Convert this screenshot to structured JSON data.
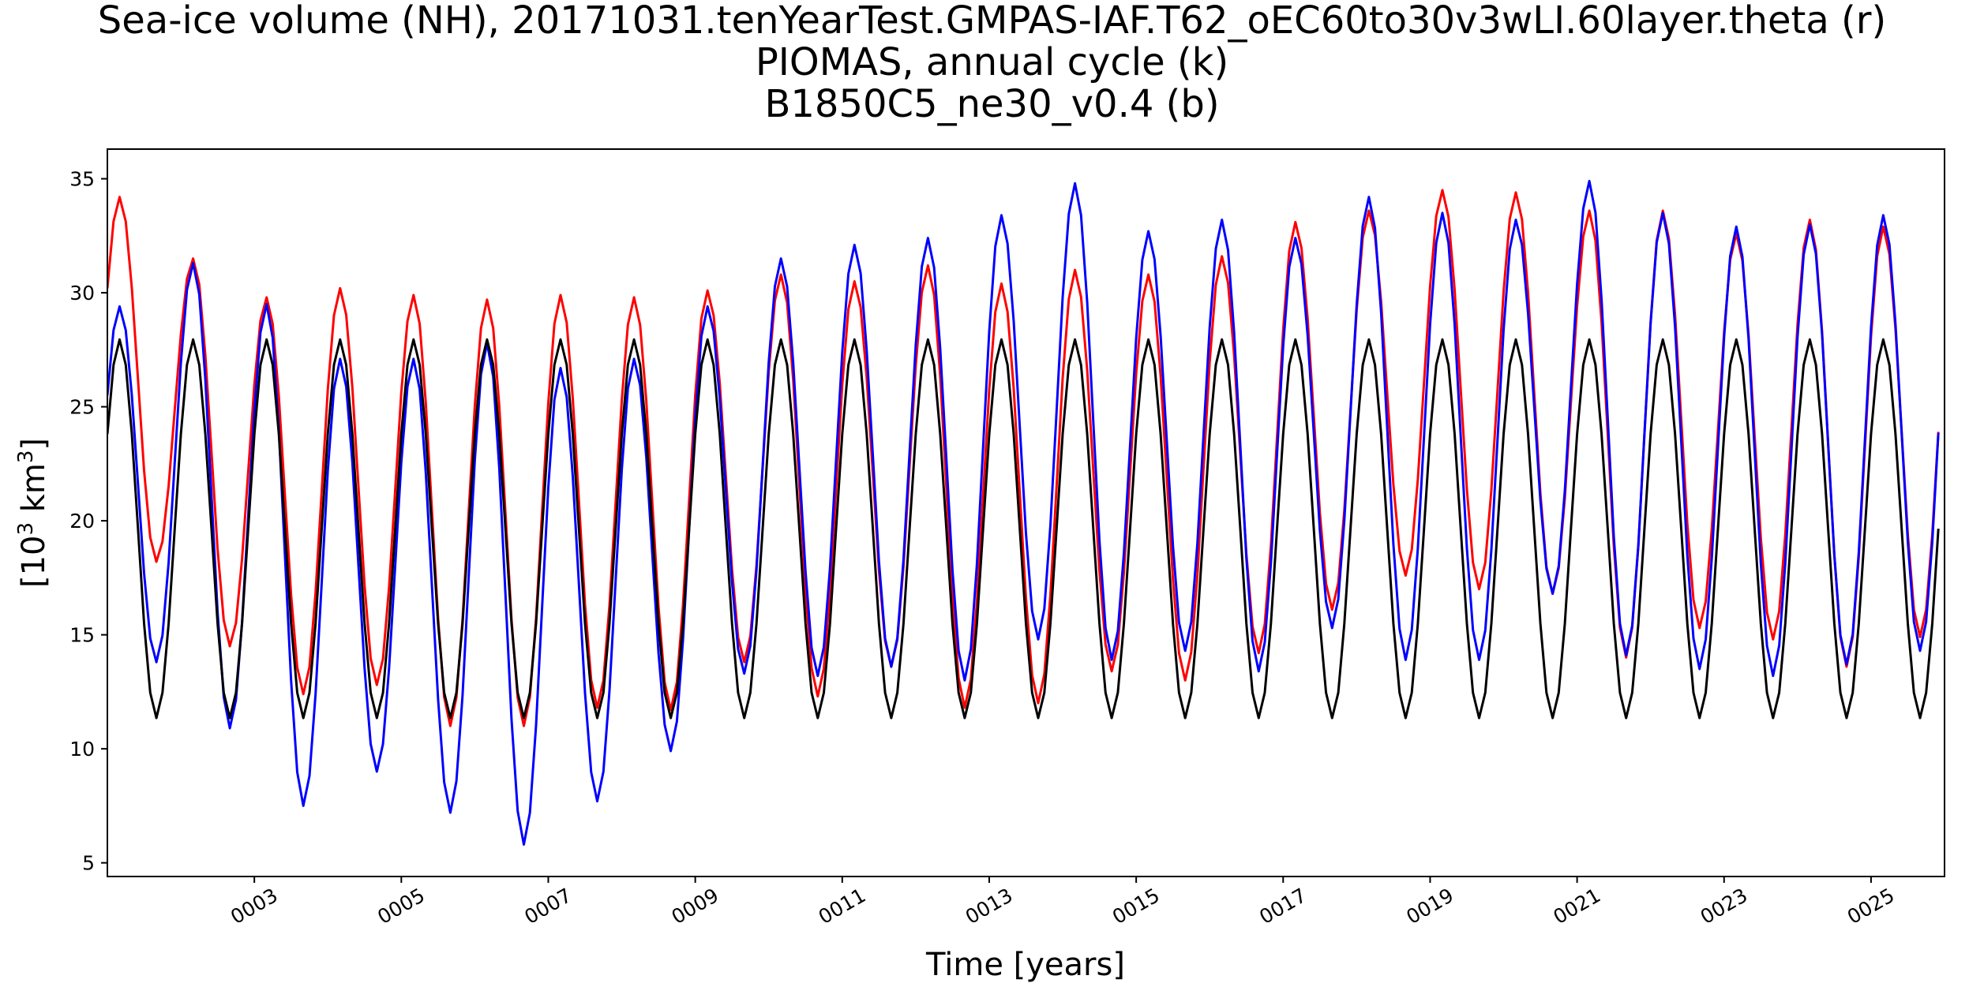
{
  "chart_data": {
    "type": "line",
    "title_lines": [
      "Sea-ice volume (NH), 20171031.tenYearTest.GMPAS-IAF.T62_oEC60to30v3wLI.60layer.theta (r)",
      "PIOMAS, annual cycle (k)",
      "B1850C5_ne30_v0.4 (b)"
    ],
    "xlabel": "Time [years]",
    "ylabel": "[10³ km³]",
    "xlim": [
      1.0,
      26.0
    ],
    "ylim": [
      4.4,
      36.3
    ],
    "x_ticks": [
      3,
      5,
      7,
      9,
      11,
      13,
      15,
      17,
      19,
      21,
      23,
      25
    ],
    "x_tick_labels": [
      "0003",
      "0005",
      "0007",
      "0009",
      "0011",
      "0013",
      "0015",
      "0017",
      "0019",
      "0021",
      "0023",
      "0025"
    ],
    "y_ticks": [
      5,
      10,
      15,
      20,
      25,
      30,
      35
    ],
    "y_tick_labels": [
      "5",
      "10",
      "15",
      "20",
      "25",
      "30",
      "35"
    ],
    "grid": false,
    "series": [
      {
        "color": "#ff0000",
        "annual_max": [
          34.2,
          31.5,
          29.8,
          30.2,
          29.9,
          29.7,
          29.9,
          29.8,
          30.1,
          30.8,
          30.5,
          31.2,
          30.4,
          31.0,
          30.8,
          31.6,
          33.1,
          33.6,
          34.5,
          34.4,
          33.6,
          33.6,
          32.6,
          33.2,
          32.9
        ],
        "annual_min": [
          18.2,
          14.5,
          12.4,
          12.8,
          11.0,
          11.0,
          11.8,
          11.7,
          13.8,
          12.3,
          13.6,
          11.8,
          12.0,
          13.4,
          13.0,
          14.2,
          16.1,
          17.6,
          17.0,
          16.8,
          14.0,
          15.3,
          14.8,
          13.6,
          14.9
        ]
      },
      {
        "color": "#0000ff",
        "annual_max": [
          29.4,
          31.3,
          29.5,
          27.1,
          27.1,
          27.8,
          26.7,
          27.1,
          29.4,
          31.5,
          32.1,
          32.4,
          33.4,
          34.8,
          32.7,
          33.2,
          32.4,
          34.2,
          33.5,
          33.2,
          34.9,
          33.5,
          32.9,
          33.0,
          33.4
        ],
        "annual_min": [
          13.8,
          10.9,
          7.5,
          9.0,
          7.2,
          5.8,
          7.7,
          9.9,
          13.3,
          13.2,
          13.6,
          13.0,
          14.8,
          13.9,
          14.3,
          13.4,
          15.3,
          13.9,
          13.9,
          16.8,
          14.1,
          13.5,
          13.2,
          13.7,
          14.3
        ]
      },
      {
        "color": "#000000",
        "annual_max": [
          27.95,
          27.95,
          27.95,
          27.95,
          27.95,
          27.95,
          27.95,
          27.95,
          27.95,
          27.95,
          27.95,
          27.95,
          27.95,
          27.95,
          27.95,
          27.95,
          27.95,
          27.95,
          27.95,
          27.95,
          27.95,
          27.95,
          27.95,
          27.95,
          27.95
        ],
        "annual_min": [
          11.35,
          11.35,
          11.35,
          11.35,
          11.35,
          11.35,
          11.35,
          11.35,
          11.35,
          11.35,
          11.35,
          11.35,
          11.35,
          11.35,
          11.35,
          11.35,
          11.35,
          11.35,
          11.35,
          11.35,
          11.35,
          11.35,
          11.35,
          11.35,
          11.35
        ]
      }
    ]
  }
}
